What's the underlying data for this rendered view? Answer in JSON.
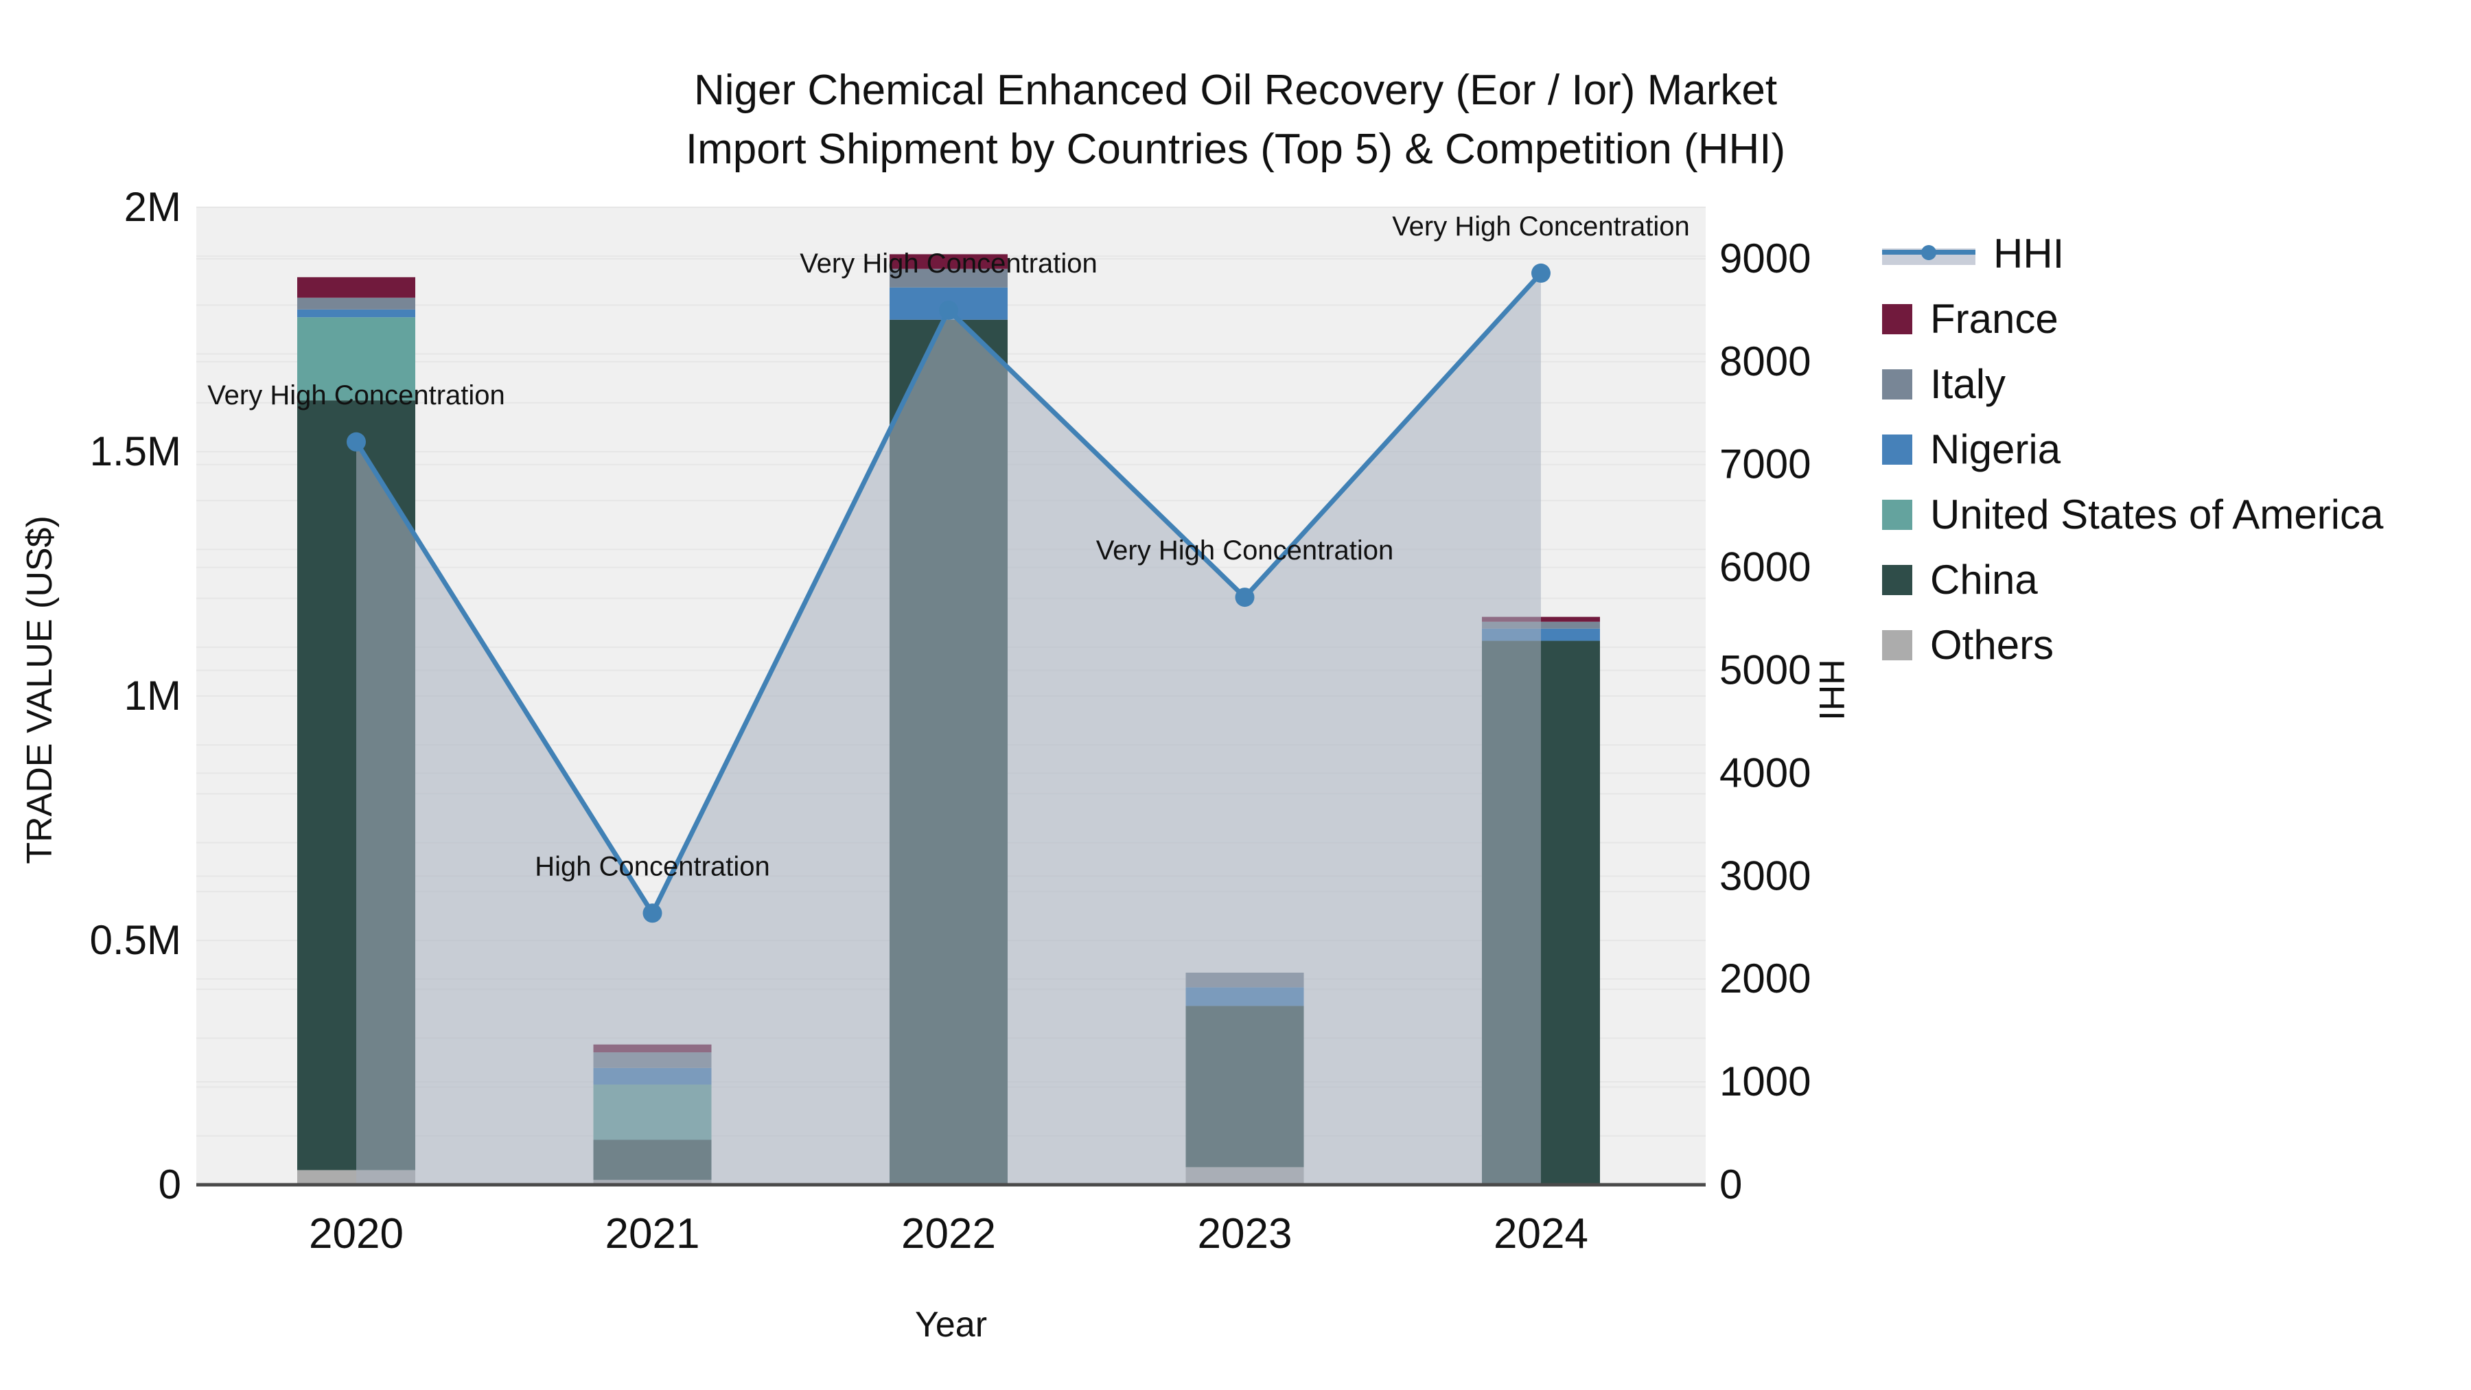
{
  "title": {
    "line1": "Niger Chemical Enhanced Oil Recovery (Eor / Ior) Market",
    "line2": "Import Shipment by Countries (Top 5) & Competition (HHI)"
  },
  "chart_data": {
    "type": "bar+line",
    "categories": [
      "2020",
      "2021",
      "2022",
      "2023",
      "2024"
    ],
    "stack_note": "series listed bottom-to-top of stack",
    "series": [
      {
        "name": "Others",
        "color": "#ACACAC",
        "values": [
          30000,
          10000,
          0,
          36000,
          0
        ]
      },
      {
        "name": "China",
        "color": "#2F4D49",
        "values": [
          1575000,
          82000,
          1770000,
          330000,
          1113000
        ]
      },
      {
        "name": "United States of America",
        "color": "#64A39E",
        "values": [
          170000,
          113000,
          0,
          0,
          0
        ]
      },
      {
        "name": "Nigeria",
        "color": "#4681B9",
        "values": [
          16000,
          34000,
          66000,
          38000,
          25000
        ]
      },
      {
        "name": "Italy",
        "color": "#788696",
        "values": [
          24000,
          32000,
          38000,
          30000,
          14000
        ]
      },
      {
        "name": "France",
        "color": "#711A3D",
        "values": [
          42000,
          16000,
          30000,
          0,
          10000
        ]
      }
    ],
    "totals": [
      1857000,
      287000,
      1904000,
      434000,
      1162000
    ],
    "hhi": {
      "name": "HHI",
      "color": "#4181B5",
      "area_fill": "rgba(168,177,192,0.55)",
      "values": [
        7220,
        2640,
        8500,
        5710,
        8860
      ],
      "annotations": [
        "Very High Concentration",
        "High Concentration",
        "Very High Concentration",
        "Very High Concentration",
        "Very High Concentration"
      ]
    },
    "xlabel": "Year",
    "ylabel": "TRADE VALUE (US$)",
    "y2label": "HHI",
    "ylim": [
      0,
      2000000
    ],
    "y2lim": [
      0,
      9500
    ],
    "yticks": [
      {
        "value": 0,
        "label": "0"
      },
      {
        "value": 500000,
        "label": "0.5M"
      },
      {
        "value": 1000000,
        "label": "1M"
      },
      {
        "value": 1500000,
        "label": "1.5M"
      },
      {
        "value": 2000000,
        "label": "2M"
      }
    ],
    "y2ticks": [
      {
        "value": 0,
        "label": "0"
      },
      {
        "value": 1000,
        "label": "1000"
      },
      {
        "value": 2000,
        "label": "2000"
      },
      {
        "value": 3000,
        "label": "3000"
      },
      {
        "value": 4000,
        "label": "4000"
      },
      {
        "value": 5000,
        "label": "5000"
      },
      {
        "value": 6000,
        "label": "6000"
      },
      {
        "value": 7000,
        "label": "7000"
      },
      {
        "value": 8000,
        "label": "8000"
      },
      {
        "value": 9000,
        "label": "9000"
      }
    ],
    "legend": [
      {
        "label": "HHI",
        "type": "line",
        "color": "#4181B5"
      },
      {
        "label": "France",
        "type": "swatch",
        "color": "#711A3D"
      },
      {
        "label": "Italy",
        "type": "swatch",
        "color": "#788696"
      },
      {
        "label": "Nigeria",
        "type": "swatch",
        "color": "#4681B9"
      },
      {
        "label": "United States of America",
        "type": "swatch",
        "color": "#64A39E"
      },
      {
        "label": "China",
        "type": "swatch",
        "color": "#2F4D49"
      },
      {
        "label": "Others",
        "type": "swatch",
        "color": "#ACACAC"
      }
    ],
    "plot": {
      "background": "#F0F0F0",
      "grid_color": "#E6E6E6",
      "axis_line_color": "#4A4A4A",
      "grid_on": true,
      "legend_position": "right"
    }
  }
}
